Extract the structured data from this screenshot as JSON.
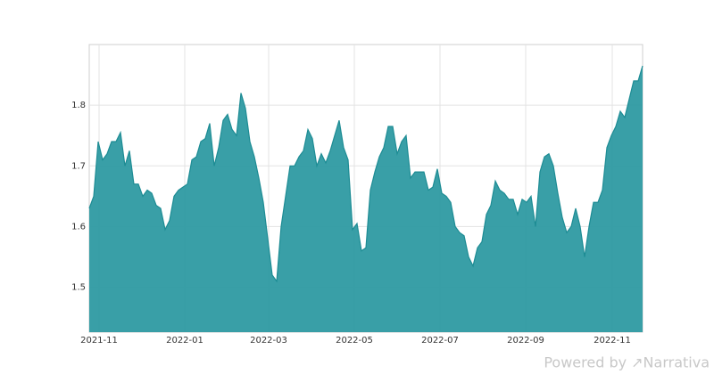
{
  "chart_data": {
    "type": "area",
    "color": "#2e9aa2",
    "line_color": "#1d8c94",
    "values": [
      1.63,
      1.65,
      1.74,
      1.71,
      1.72,
      1.74,
      1.74,
      1.755,
      1.7,
      1.725,
      1.67,
      1.67,
      1.65,
      1.66,
      1.655,
      1.635,
      1.63,
      1.595,
      1.61,
      1.65,
      1.66,
      1.665,
      1.67,
      1.71,
      1.715,
      1.74,
      1.745,
      1.77,
      1.7,
      1.73,
      1.775,
      1.785,
      1.76,
      1.75,
      1.82,
      1.795,
      1.74,
      1.715,
      1.68,
      1.64,
      1.58,
      1.52,
      1.51,
      1.6,
      1.65,
      1.7,
      1.7,
      1.715,
      1.725,
      1.76,
      1.745,
      1.7,
      1.72,
      1.705,
      1.725,
      1.75,
      1.775,
      1.73,
      1.71,
      1.595,
      1.605,
      1.56,
      1.565,
      1.66,
      1.69,
      1.715,
      1.73,
      1.765,
      1.765,
      1.72,
      1.74,
      1.75,
      1.68,
      1.69,
      1.69,
      1.69,
      1.66,
      1.665,
      1.695,
      1.655,
      1.65,
      1.64,
      1.6,
      1.59,
      1.585,
      1.55,
      1.535,
      1.565,
      1.575,
      1.62,
      1.635,
      1.675,
      1.66,
      1.655,
      1.645,
      1.645,
      1.62,
      1.645,
      1.64,
      1.65,
      1.6,
      1.69,
      1.715,
      1.72,
      1.7,
      1.655,
      1.615,
      1.59,
      1.6,
      1.63,
      1.6,
      1.55,
      1.6,
      1.64,
      1.64,
      1.66,
      1.73,
      1.75,
      1.765,
      1.79,
      1.78,
      1.81,
      1.84,
      1.84,
      1.865
    ],
    "xlim": [
      0,
      124
    ],
    "xticks": [
      {
        "value": 2.2,
        "label": "2021-11"
      },
      {
        "value": 21.4,
        "label": "2022-01"
      },
      {
        "value": 40.2,
        "label": "2022-03"
      },
      {
        "value": 59.4,
        "label": "2022-05"
      },
      {
        "value": 78.6,
        "label": "2022-07"
      },
      {
        "value": 97.8,
        "label": "2022-09"
      },
      {
        "value": 117.2,
        "label": "2022-11"
      }
    ],
    "ylim": [
      1.426,
      1.9
    ],
    "yticks": [
      1.5,
      1.6,
      1.7,
      1.8
    ],
    "grid": true,
    "watermark": "Powered by ↗Narrativa"
  }
}
